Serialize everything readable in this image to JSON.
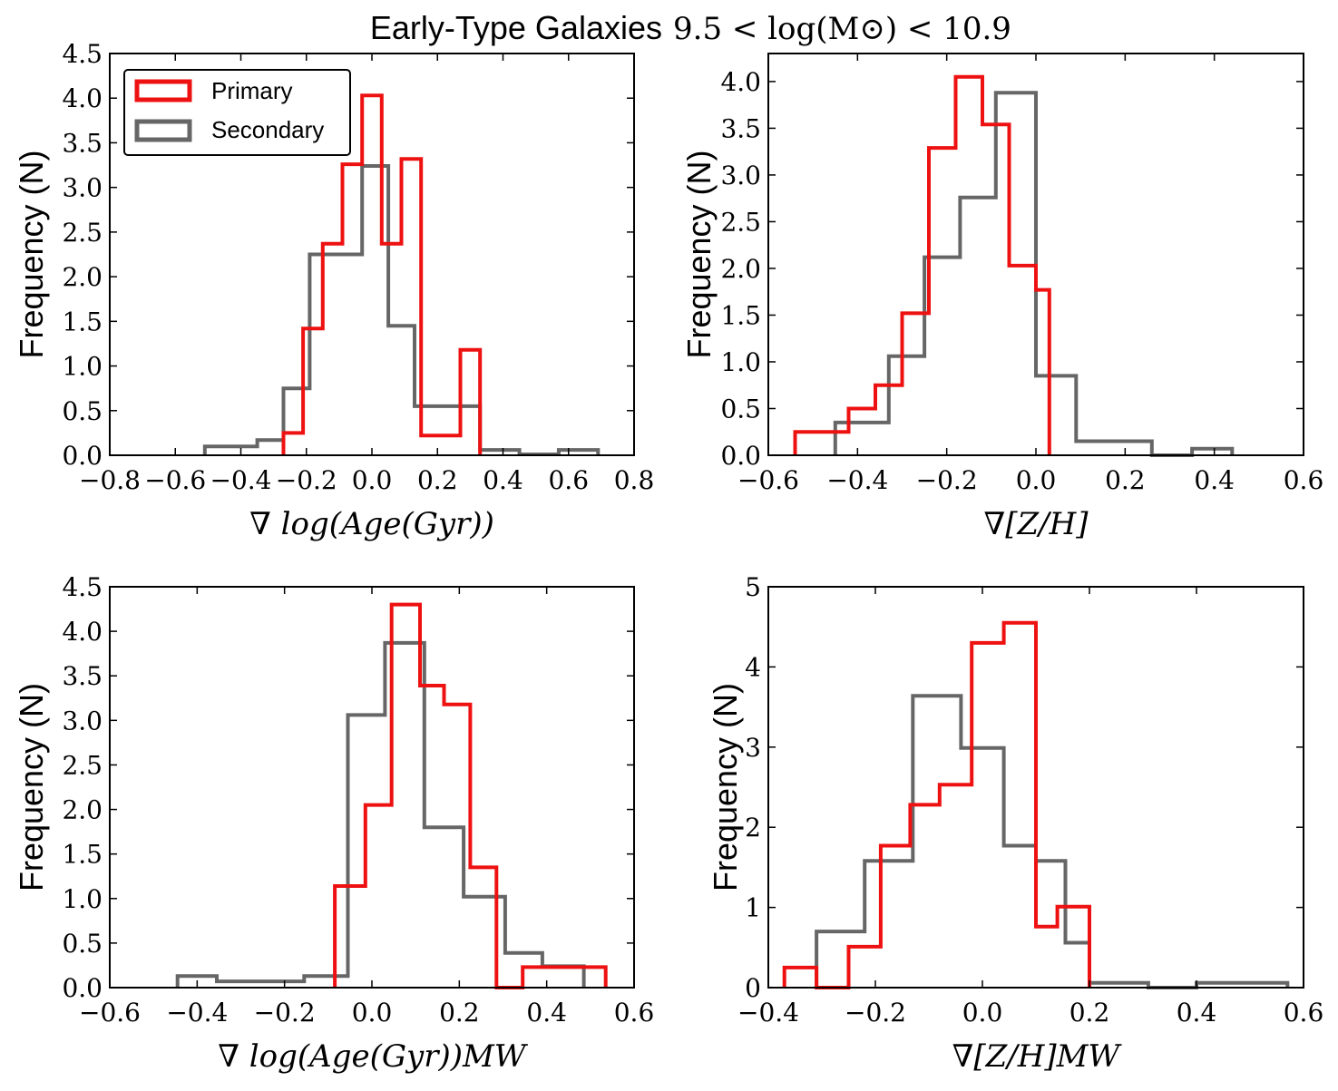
{
  "title": {
    "text": "Early-Type Galaxies",
    "math": "9.5 < log(M⊙) < 10.9"
  },
  "colors": {
    "primary": "#ee1111",
    "secondary": "#666666"
  },
  "legend": {
    "primary": "Primary",
    "secondary": "Secondary",
    "placement": "top-left"
  },
  "chart_data": [
    {
      "type": "histogram",
      "position": "top-left",
      "xlabel": "∇ log(Age(Gyr))",
      "ylabel": "Frequency (N)",
      "xlim": [
        -0.8,
        0.8
      ],
      "ylim": [
        0,
        4.5
      ],
      "xticks": [
        -0.8,
        -0.6,
        -0.4,
        -0.2,
        0.0,
        0.2,
        0.4,
        0.6,
        0.8
      ],
      "xtick_labels": [
        "−0.8",
        "−0.6",
        "−0.4",
        "−0.2",
        "0.0",
        "0.2",
        "0.4",
        "0.6",
        "0.8"
      ],
      "yticks": [
        0,
        0.5,
        1,
        1.5,
        2,
        2.5,
        3,
        3.5,
        4,
        4.5
      ],
      "ytick_labels": [
        "0.0",
        "0.5",
        "1.0",
        "1.5",
        "2.0",
        "2.5",
        "3.0",
        "3.5",
        "4.0",
        "4.5"
      ],
      "legend": true,
      "series": [
        {
          "name": "Primary",
          "edges": [
            -0.27,
            -0.21,
            -0.15,
            -0.09,
            -0.03,
            0.03,
            0.09,
            0.15,
            0.21,
            0.27,
            0.33
          ],
          "counts": [
            0.25,
            1.42,
            2.37,
            3.26,
            4.03,
            2.37,
            3.32,
            0.22,
            0.22,
            1.18
          ]
        },
        {
          "name": "Secondary",
          "edges": [
            -0.51,
            -0.43,
            -0.35,
            -0.27,
            -0.19,
            -0.11,
            -0.03,
            0.05,
            0.13,
            0.21,
            0.33,
            0.45,
            0.57,
            0.69
          ],
          "counts": [
            0.1,
            0.1,
            0.17,
            0.75,
            2.25,
            2.25,
            3.24,
            1.45,
            0.55,
            0.55,
            0.06,
            0.01,
            0.06
          ]
        }
      ]
    },
    {
      "type": "histogram",
      "position": "top-right",
      "xlabel": "∇[Z/H]",
      "ylabel": "Frequency (N)",
      "xlim": [
        -0.6,
        0.6
      ],
      "ylim": [
        0,
        4.3
      ],
      "xticks": [
        -0.6,
        -0.4,
        -0.2,
        0.0,
        0.2,
        0.4,
        0.6
      ],
      "xtick_labels": [
        "−0.6",
        "−0.4",
        "−0.2",
        "0.0",
        "0.2",
        "0.4",
        "0.6"
      ],
      "yticks": [
        0,
        0.5,
        1,
        1.5,
        2,
        2.5,
        3,
        3.5,
        4
      ],
      "ytick_labels": [
        "0.0",
        "0.5",
        "1.0",
        "1.5",
        "2.0",
        "2.5",
        "3.0",
        "3.5",
        "4.0"
      ],
      "legend": false,
      "series": [
        {
          "name": "Primary",
          "edges": [
            -0.54,
            -0.48,
            -0.42,
            -0.36,
            -0.3,
            -0.24,
            -0.18,
            -0.12,
            -0.06,
            0.0,
            0.03
          ],
          "counts": [
            0.25,
            0.25,
            0.5,
            0.75,
            1.52,
            3.29,
            4.05,
            3.54,
            2.03,
            1.77
          ]
        },
        {
          "name": "Secondary",
          "edges": [
            -0.45,
            -0.39,
            -0.33,
            -0.25,
            -0.17,
            -0.09,
            0.0,
            0.09,
            0.17,
            0.26,
            0.35,
            0.44
          ],
          "counts": [
            0.35,
            0.35,
            1.06,
            2.12,
            2.76,
            3.88,
            0.85,
            0.15,
            0.15,
            0.0,
            0.07
          ]
        }
      ]
    },
    {
      "type": "histogram",
      "position": "bottom-left",
      "xlabel": "∇ log(Age(Gyr))MW",
      "ylabel": "Frequency (N)",
      "xlim": [
        -0.6,
        0.6
      ],
      "ylim": [
        0,
        4.5
      ],
      "xticks": [
        -0.6,
        -0.4,
        -0.2,
        0.0,
        0.2,
        0.4,
        0.6
      ],
      "xtick_labels": [
        "−0.6",
        "−0.4",
        "−0.2",
        "0.0",
        "0.2",
        "0.4",
        "0.6"
      ],
      "yticks": [
        0,
        0.5,
        1,
        1.5,
        2,
        2.5,
        3,
        3.5,
        4,
        4.5
      ],
      "ytick_labels": [
        "0.0",
        "0.5",
        "1.0",
        "1.5",
        "2.0",
        "2.5",
        "3.0",
        "3.5",
        "4.0",
        "4.5"
      ],
      "legend": false,
      "series": [
        {
          "name": "Primary",
          "edges": [
            -0.085,
            -0.015,
            0.045,
            0.11,
            0.165,
            0.225,
            0.285,
            0.345,
            0.405,
            0.465,
            0.535
          ],
          "counts": [
            1.14,
            2.05,
            4.3,
            3.39,
            3.18,
            1.35,
            0.0,
            0.23,
            0.23,
            0.23
          ]
        },
        {
          "name": "Secondary",
          "edges": [
            -0.445,
            -0.355,
            -0.265,
            -0.155,
            -0.055,
            0.03,
            0.12,
            0.21,
            0.305,
            0.39,
            0.485
          ],
          "counts": [
            0.13,
            0.07,
            0.07,
            0.13,
            3.06,
            3.87,
            1.8,
            1.02,
            0.39,
            0.24
          ]
        }
      ]
    },
    {
      "type": "histogram",
      "position": "bottom-right",
      "xlabel": "∇[Z/H]MW",
      "ylabel": "Frequency (N)",
      "xlim": [
        -0.4,
        0.6
      ],
      "ylim": [
        0,
        5
      ],
      "xticks": [
        -0.4,
        -0.2,
        0.0,
        0.2,
        0.4,
        0.6
      ],
      "xtick_labels": [
        "−0.4",
        "−0.2",
        "0.0",
        "0.2",
        "0.4",
        "0.6"
      ],
      "yticks": [
        0,
        1,
        2,
        3,
        4,
        5
      ],
      "ytick_labels": [
        "0",
        "1",
        "2",
        "3",
        "4",
        "5"
      ],
      "legend": false,
      "series": [
        {
          "name": "Primary",
          "edges": [
            -0.37,
            -0.31,
            -0.25,
            -0.19,
            -0.135,
            -0.08,
            -0.02,
            0.04,
            0.1,
            0.14,
            0.2
          ],
          "counts": [
            0.25,
            0.0,
            0.51,
            1.77,
            2.28,
            2.53,
            4.3,
            4.55,
            0.76,
            1.01
          ]
        },
        {
          "name": "Secondary",
          "edges": [
            -0.31,
            -0.22,
            -0.13,
            -0.04,
            0.04,
            0.1,
            0.155,
            0.2,
            0.31,
            0.4,
            0.57
          ],
          "counts": [
            0.7,
            1.58,
            3.64,
            2.99,
            1.77,
            1.58,
            0.56,
            0.06,
            0.0,
            0.06
          ]
        }
      ]
    }
  ]
}
